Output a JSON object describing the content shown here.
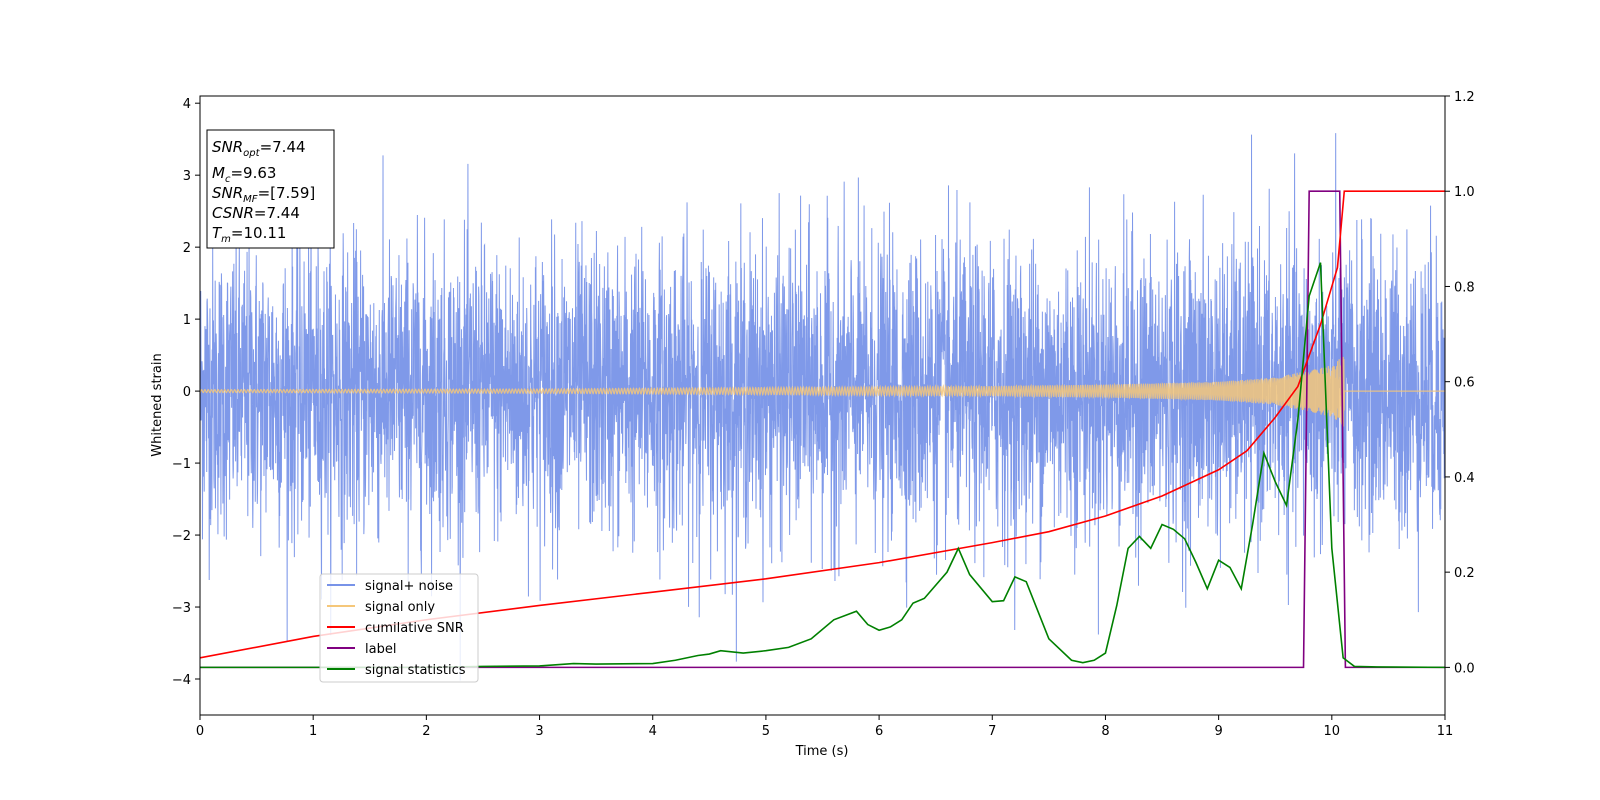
{
  "chart_data": {
    "type": "line",
    "title": "",
    "xlabel": "Time (s)",
    "ylabel": "Whitened strain",
    "xlim": [
      0,
      11
    ],
    "ylim_left": [
      -4.5,
      4.1
    ],
    "ylim_right": [
      -0.1,
      1.2
    ],
    "x_ticks": [
      0,
      1,
      2,
      3,
      4,
      5,
      6,
      7,
      8,
      9,
      10,
      11
    ],
    "y_ticks_left": [
      -4,
      -3,
      -2,
      -1,
      0,
      1,
      2,
      3,
      4
    ],
    "y_ticks_right": [
      0.0,
      0.2,
      0.4,
      0.6,
      0.8,
      1.0,
      1.2
    ],
    "grid": false,
    "legend_position": "lower-left",
    "info_box": {
      "snr_opt": {
        "label": "SNR",
        "sub": "opt",
        "value": "=7.44"
      },
      "mc": {
        "label": "M",
        "sub": "c",
        "value": "=9.63"
      },
      "snr_mf": {
        "label": "SNR",
        "sub": "MF",
        "value": "=[7.59]"
      },
      "csnr": {
        "label": "CSNR",
        "value": "=7.44"
      },
      "tm": {
        "label": "T",
        "sub": "m",
        "value": "=10.11"
      }
    },
    "series": [
      {
        "name": "signal+ noise",
        "axis": "left",
        "color": "#7893e8",
        "description_envelope": {
          "x": [
            0,
            11
          ],
          "typical_abs": 1.9,
          "peak_abs": 3.7
        }
      },
      {
        "name": "signal only",
        "axis": "left",
        "color": "#f5c77a",
        "envelope": {
          "x": [
            0,
            3,
            5,
            7,
            8,
            9,
            9.5,
            10,
            10.11
          ],
          "amplitude": [
            0.02,
            0.03,
            0.05,
            0.07,
            0.09,
            0.13,
            0.19,
            0.36,
            0.5
          ]
        }
      },
      {
        "name": "cumilative SNR",
        "axis": "right",
        "color": "#ff0000",
        "x": [
          0,
          1,
          2,
          3,
          4,
          5,
          6,
          7,
          7.5,
          8,
          8.5,
          9,
          9.25,
          9.5,
          9.7,
          9.9,
          10.05,
          10.11,
          11
        ],
        "y": [
          0.02,
          0.065,
          0.1,
          0.13,
          0.158,
          0.186,
          0.22,
          0.262,
          0.285,
          0.318,
          0.36,
          0.415,
          0.455,
          0.525,
          0.59,
          0.72,
          0.84,
          1.0,
          1.0
        ]
      },
      {
        "name": "label",
        "axis": "right",
        "color": "#800080",
        "x": [
          0,
          9.75,
          9.8,
          10.07,
          10.12,
          11
        ],
        "y": [
          0,
          0,
          1,
          1,
          0,
          0
        ]
      },
      {
        "name": "signal statistics",
        "axis": "right",
        "color": "#008000",
        "x": [
          0,
          1,
          2,
          2.5,
          3,
          3.3,
          3.5,
          4,
          4.2,
          4.4,
          4.5,
          4.6,
          4.8,
          5,
          5.2,
          5.4,
          5.6,
          5.8,
          5.9,
          6.0,
          6.1,
          6.2,
          6.3,
          6.4,
          6.6,
          6.7,
          6.8,
          7.0,
          7.1,
          7.2,
          7.3,
          7.5,
          7.7,
          7.8,
          7.9,
          8.0,
          8.1,
          8.2,
          8.3,
          8.4,
          8.5,
          8.6,
          8.7,
          8.8,
          8.9,
          9.0,
          9.1,
          9.2,
          9.3,
          9.4,
          9.5,
          9.6,
          9.7,
          9.8,
          9.9,
          10.0,
          10.1,
          10.2,
          10.4,
          11
        ],
        "y": [
          0,
          0,
          0,
          0.002,
          0.003,
          0.008,
          0.007,
          0.008,
          0.015,
          0.025,
          0.028,
          0.035,
          0.03,
          0.035,
          0.042,
          0.06,
          0.1,
          0.118,
          0.09,
          0.078,
          0.085,
          0.1,
          0.135,
          0.145,
          0.2,
          0.25,
          0.195,
          0.138,
          0.14,
          0.19,
          0.18,
          0.06,
          0.015,
          0.01,
          0.015,
          0.03,
          0.13,
          0.25,
          0.275,
          0.25,
          0.3,
          0.29,
          0.27,
          0.22,
          0.165,
          0.225,
          0.21,
          0.165,
          0.3,
          0.45,
          0.39,
          0.34,
          0.52,
          0.78,
          0.85,
          0.25,
          0.02,
          0.002,
          0.001,
          0
        ]
      }
    ]
  }
}
